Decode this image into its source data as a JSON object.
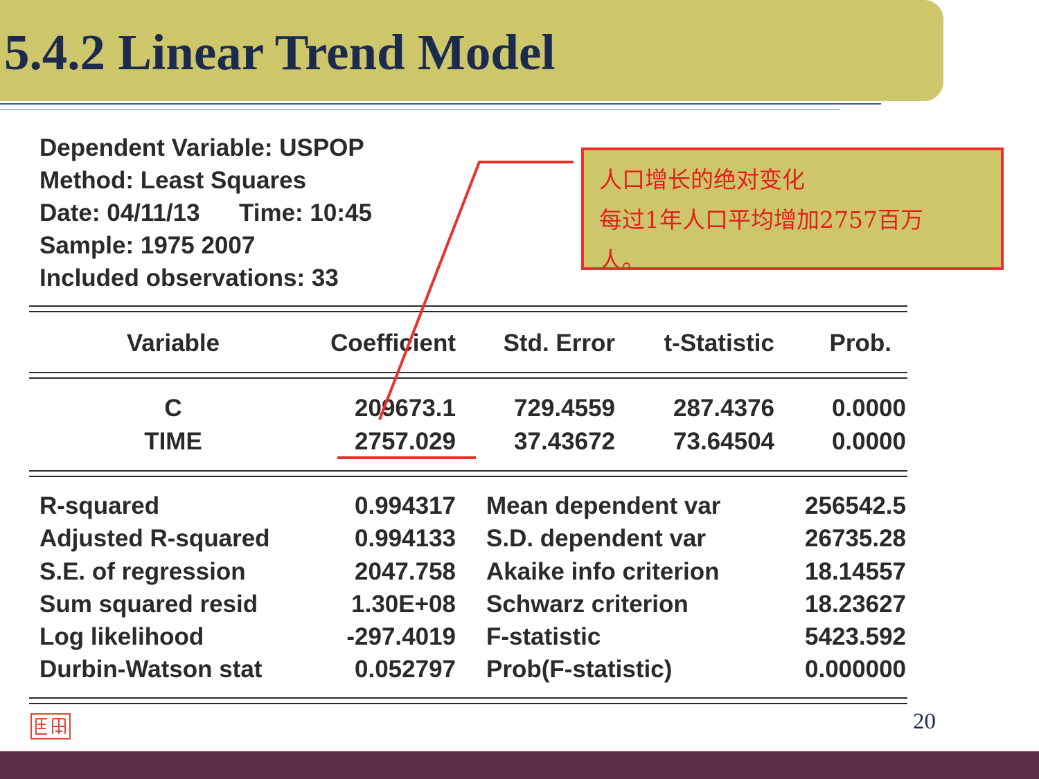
{
  "slide": {
    "title": "5.4.2 Linear Trend Model",
    "page_number": "20"
  },
  "regression_output": {
    "header": {
      "dependent_variable": "Dependent Variable: USPOP",
      "method": "Method: Least Squares",
      "date": "Date: 04/11/13",
      "time": "Time: 10:45",
      "sample": "Sample: 1975 2007",
      "included_observations": "Included observations: 33"
    },
    "columns": [
      "Variable",
      "Coefficient",
      "Std. Error",
      "t-Statistic",
      "Prob."
    ],
    "rows": [
      {
        "variable": "C",
        "coefficient": "209673.1",
        "std_error": "729.4559",
        "t_statistic": "287.4376",
        "prob": "0.0000"
      },
      {
        "variable": "TIME",
        "coefficient": "2757.029",
        "std_error": "37.43672",
        "t_statistic": "73.64504",
        "prob": "0.0000"
      }
    ],
    "stats_left": [
      {
        "label": "R-squared",
        "value": "0.994317"
      },
      {
        "label": "Adjusted R-squared",
        "value": "0.994133"
      },
      {
        "label": "S.E. of regression",
        "value": "2047.758"
      },
      {
        "label": "Sum squared resid",
        "value": "1.30E+08"
      },
      {
        "label": "Log likelihood",
        "value": "-297.4019"
      },
      {
        "label": "Durbin-Watson stat",
        "value": "0.052797"
      }
    ],
    "stats_right": [
      {
        "label": "Mean dependent var",
        "value": "256542.5"
      },
      {
        "label": "S.D. dependent var",
        "value": "26735.28"
      },
      {
        "label": "Akaike info criterion",
        "value": "18.14557"
      },
      {
        "label": "Schwarz criterion",
        "value": "18.23627"
      },
      {
        "label": "F-statistic",
        "value": "5423.592"
      },
      {
        "label": "Prob(F-statistic)",
        "value": "0.000000"
      }
    ]
  },
  "callout": {
    "line1": "人口增长的绝对变化",
    "line2": "每过1年人口平均增加2757百万",
    "line3": "人。"
  },
  "colors": {
    "banner": "#cdc66b",
    "title_text": "#1c2a4e",
    "callout_border": "#e8312a",
    "callout_text": "#e41e1e",
    "bottom_bar": "#5c2c48"
  },
  "icons": {
    "seal": "seal-stamp-icon"
  }
}
